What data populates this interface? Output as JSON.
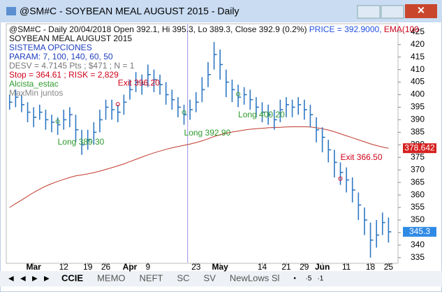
{
  "window": {
    "title": "@SM#C - SOYBEAN MEAL AUGUST 2015 - Daily"
  },
  "chart_data": {
    "type": "ohlc",
    "info": {
      "header": "@SM#C - Daily 20/04/2018 Open 392.1, Hi 395.3, Lo 389.3, Close 392.9 (0.2%)",
      "price": "PRICE = 392.9000,",
      "ema": "EMA(100",
      "lines": [
        "SOYBEAN MEAL AUGUST 2015",
        "SISTEMA OPCIONES",
        "PARAM: 7, 100, 140, 60, 50",
        "DESV = 4.7145 Pts ; $471 ; N = 1",
        "Stop = 364.61 ; RISK = 2,829",
        "Alcista_estac",
        "MaxMin juntos"
      ]
    },
    "high": [
      400,
      402,
      400,
      397,
      395,
      396,
      394,
      392,
      391,
      394,
      395,
      392,
      386,
      386,
      389,
      394,
      398,
      398,
      396,
      400,
      406,
      409,
      408,
      412,
      410,
      408,
      405,
      402,
      399,
      396,
      398,
      401,
      407,
      413,
      421,
      418,
      410,
      406,
      404,
      403,
      402,
      399,
      397,
      396,
      394,
      398,
      399,
      398,
      399,
      398,
      396,
      391,
      387,
      382,
      378,
      373,
      371,
      367,
      361,
      355,
      349,
      350,
      353,
      351
    ],
    "low": [
      394,
      395,
      393,
      389,
      387,
      390,
      386,
      385,
      384,
      386,
      387,
      381,
      376,
      378,
      380,
      385,
      390,
      390,
      389,
      392,
      398,
      401,
      400,
      403,
      401,
      400,
      396,
      394,
      391,
      388,
      390,
      393,
      397,
      403,
      410,
      406,
      399,
      397,
      395,
      396,
      394,
      391,
      389,
      388,
      386,
      389,
      391,
      391,
      392,
      390,
      387,
      381,
      377,
      373,
      367,
      364,
      361,
      357,
      350,
      344,
      335,
      339,
      344,
      341
    ],
    "close": [
      397,
      399,
      396,
      393,
      391,
      393,
      390,
      389,
      388,
      390,
      392,
      386,
      380,
      382,
      385,
      390,
      395,
      394,
      393,
      397,
      402,
      405,
      404,
      408,
      406,
      404,
      400,
      398,
      395,
      392,
      394,
      397,
      402,
      408,
      416,
      412,
      405,
      402,
      399,
      400,
      398,
      395,
      393,
      392,
      390,
      394,
      396,
      395,
      396,
      394,
      392,
      386,
      383,
      378,
      373,
      369,
      366,
      362,
      356,
      350,
      342,
      344,
      349,
      345.3
    ],
    "ema": [
      355,
      356.5,
      358,
      359.5,
      361,
      362.3,
      363.5,
      364.5,
      365.4,
      366.2,
      367,
      367.6,
      368,
      368.4,
      368.9,
      369.5,
      370.2,
      370.9,
      371.6,
      372.4,
      373.3,
      374.2,
      375.1,
      376,
      376.8,
      377.5,
      378.2,
      378.8,
      379.3,
      379.8,
      380.3,
      380.9,
      381.6,
      382.4,
      383.3,
      384,
      384.6,
      385.1,
      385.5,
      385.9,
      386.2,
      386.4,
      386.6,
      386.8,
      386.9,
      387,
      387.1,
      387.2,
      387.2,
      387.2,
      387.1,
      386.8,
      386.4,
      385.9,
      385.2,
      384.4,
      383.6,
      382.8,
      382,
      381.2,
      380.4,
      379.7,
      379.1,
      378.642
    ],
    "bar_color": "#2f78c4",
    "ema_color": "#c0392b",
    "ylim": [
      333,
      428
    ],
    "yticks": [
      335,
      340,
      345,
      350,
      355,
      360,
      365,
      370,
      375,
      380,
      385,
      390,
      395,
      400,
      405,
      410,
      415,
      420,
      425
    ],
    "xlim": [
      -0.2,
      64
    ],
    "xticks": [
      {
        "value": 4,
        "label": "Mar"
      },
      {
        "value": 9,
        "label": "12"
      },
      {
        "value": 13,
        "label": "19"
      },
      {
        "value": 16,
        "label": "26"
      },
      {
        "value": 20,
        "label": "Apr"
      },
      {
        "value": 23,
        "label": "9"
      },
      {
        "value": 31,
        "label": "23"
      },
      {
        "value": 35,
        "label": "May"
      },
      {
        "value": 42,
        "label": "14"
      },
      {
        "value": 46,
        "label": "21"
      },
      {
        "value": 49,
        "label": "29"
      },
      {
        "value": 52,
        "label": "Jun"
      },
      {
        "value": 56,
        "label": "11"
      },
      {
        "value": 60,
        "label": "18"
      },
      {
        "value": 63,
        "label": "25"
      }
    ],
    "cursor_index": 29.6,
    "annotations": [
      {
        "text": "Exit 396.20",
        "value": 396.2,
        "index": 18,
        "color": "#d0021b"
      },
      {
        "text": "Long 389.30",
        "value": 389.3,
        "index": 8,
        "color": "#2e9a2e"
      },
      {
        "text": "Long 392.90",
        "value": 392.9,
        "index": 29,
        "color": "#2e9a2e"
      },
      {
        "text": "Long 400.20",
        "value": 400.2,
        "index": 38,
        "color": "#2e9a2e"
      },
      {
        "text": "Exit 366.50",
        "value": 366.5,
        "index": 55,
        "color": "#d0021b"
      }
    ],
    "last_labels": [
      {
        "label": "378.642",
        "value": 378.642,
        "color": "#d62020"
      },
      {
        "label": "345.3",
        "value": 345.3,
        "color": "#2f8ae6"
      }
    ]
  },
  "tabs": [
    "CCIE",
    "MEMO",
    "NEFT",
    "SC",
    "SV",
    "NewLows Sl"
  ],
  "tab_controls": [
    "•",
    "·5",
    "·1"
  ]
}
